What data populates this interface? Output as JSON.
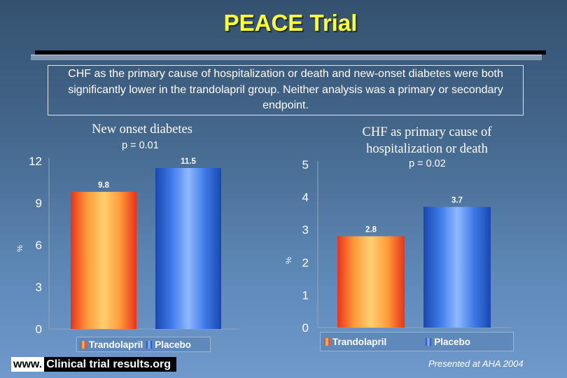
{
  "title": "PEACE Trial",
  "note": "CHF as the primary cause of hospitalization or death and new-onset diabetes were both significantly lower in the trandolapril group.  Neither analysis was a primary or secondary endpoint.",
  "footer": {
    "site_www": "www.",
    "site_rest": "Clinical trial results.org",
    "presented": "Presented at AHA 2004"
  },
  "colors": {
    "title": "#ffff33",
    "trandolapril": "#f07a2a",
    "placebo": "#2f66d6",
    "background": "#4f76a0"
  },
  "chart_data": [
    {
      "type": "bar",
      "title": "New onset diabetes",
      "subtitle": "p = 0.01",
      "ylabel": "%",
      "categories": [
        "Trandolapril",
        "Placebo"
      ],
      "values": [
        9.8,
        11.5
      ],
      "value_labels": [
        "9.8",
        "11.5"
      ],
      "ylim": [
        0,
        12
      ],
      "yticks": [
        0,
        3,
        6,
        9,
        12
      ],
      "legend": [
        "Trandolapril",
        "Placebo"
      ],
      "legend_position": "bottom",
      "grid": false
    },
    {
      "type": "bar",
      "title": "CHF as primary cause of hospitalization or death",
      "subtitle": "p = 0.02",
      "ylabel": "%",
      "categories": [
        "Trandolapril",
        "Placebo"
      ],
      "values": [
        2.8,
        3.7
      ],
      "value_labels": [
        "2.8",
        "3.7"
      ],
      "ylim": [
        0,
        5
      ],
      "yticks": [
        0,
        1,
        2,
        3,
        4,
        5
      ],
      "legend": [
        "Trandolapril",
        "Placebo"
      ],
      "legend_position": "bottom",
      "grid": false
    }
  ]
}
